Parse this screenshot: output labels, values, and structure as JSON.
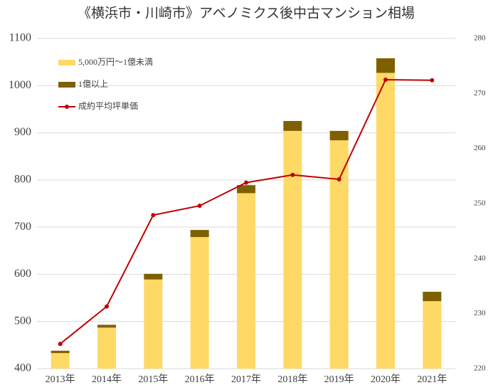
{
  "chart_data": {
    "type": "bar",
    "title": "《横浜市・川崎市》アベノミクス後中古マンション相場",
    "categories": [
      "2013年",
      "2014年",
      "2015年",
      "2016年",
      "2017年",
      "2018年",
      "2019年",
      "2020年",
      "2021年"
    ],
    "stacked": true,
    "series": [
      {
        "name": "5,000万円～1億未満",
        "color": "#ffd966",
        "values": [
          433,
          487,
          589,
          679,
          772,
          904,
          884,
          1027,
          543
        ]
      },
      {
        "name": "1億以上",
        "color": "#7f6000",
        "values": [
          5,
          6,
          12,
          15,
          17,
          21,
          20,
          31,
          20
        ]
      },
      {
        "name": "成約平均坪単価",
        "color": "#c00000",
        "type": "line",
        "axis": "y2",
        "values": [
          224.5,
          231.3,
          247.9,
          249.6,
          253.8,
          255.2,
          254.4,
          272.5,
          272.4
        ]
      }
    ],
    "ylim": [
      400,
      1100
    ],
    "yticks": [
      400,
      500,
      600,
      700,
      800,
      900,
      1000,
      1100
    ],
    "y2lim": [
      220,
      280
    ],
    "y2ticks": [
      220,
      230,
      240,
      250,
      260,
      270,
      280
    ],
    "grid": true,
    "legend": "top-left"
  }
}
